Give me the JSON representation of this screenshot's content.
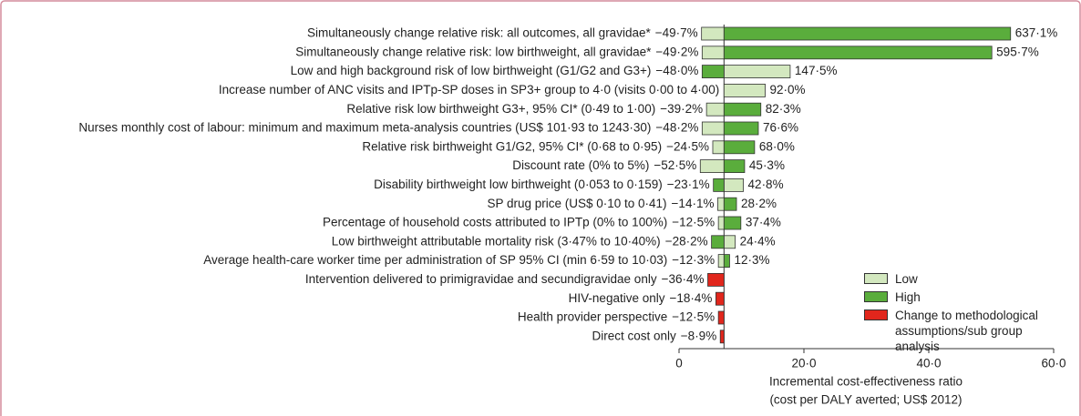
{
  "chart_data": {
    "type": "tornado",
    "categories": [
      "Simultaneously change relative risk: all outcomes, all gravidae*",
      "Simultaneously change relative risk: low birthweight, all gravidae*",
      "Low and high background risk of low birthweight (G1/G2 and G3+)",
      "Increase number of ANC visits and IPTp-SP doses in SP3+ group to 4·0 (visits 0·00 to 4·00)",
      "Relative risk low birthweight G3+, 95% CI* (0·49 to 1·00)",
      "Nurses monthly cost of labour: minimum and maximum meta-analysis countries (US$ 101·93 to 1243·30)",
      "Relative risk birthweight G1/G2, 95% CI* (0·68 to 0·95)",
      "Discount rate (0% to 5%)",
      "Disability birthweight low birthweight (0·053 to 0·159)",
      "SP drug price (US$ 0·10 to 0·41)",
      "Percentage of household costs attributed to IPTp (0% to 100%)",
      "Low birthweight attributable mortality risk (3·47% to 10·40%)",
      "Average health-care worker time per administration of SP 95% CI (min 6·59 to 10·03)",
      "Intervention delivered to primigravidae and secundigravidae only",
      "HIV-negative only",
      "Health provider perspective",
      "Direct cost only"
    ],
    "baseline": 7.2,
    "series": [
      {
        "name": "Low",
        "color": "#d3e8bf",
        "values": [
          3.6,
          3.7,
          17.8,
          13.8,
          4.4,
          3.7,
          5.4,
          3.4,
          10.3,
          6.2,
          6.3,
          9.0,
          6.3,
          null,
          null,
          null,
          null
        ],
        "labels": [
          "−49·7%",
          "−49·2%",
          "147·5%",
          "92·0%",
          "−39·2%",
          "−48·2%",
          "−24·5%",
          "−52·5%",
          "42·8%",
          "−14·1%",
          "−12·5%",
          "24·4%",
          "−12·3%",
          null,
          null,
          null,
          null
        ]
      },
      {
        "name": "High",
        "color": "#5aad3c",
        "values": [
          53.1,
          50.1,
          3.7,
          null,
          13.1,
          12.7,
          12.1,
          10.5,
          5.5,
          9.2,
          9.9,
          5.2,
          8.1,
          null,
          null,
          null,
          null
        ],
        "labels": [
          "637·1%",
          "595·7%",
          "−48·0%",
          null,
          "82·3%",
          "76·6%",
          "68·0%",
          "45·3%",
          "−23·1%",
          "28·2%",
          "37·4%",
          "−28·2%",
          "12·3%",
          null,
          null,
          null,
          null
        ]
      },
      {
        "name": "Change to methodological assumptions/sub group analysis",
        "color": "#e1261c",
        "values": [
          null,
          null,
          null,
          null,
          null,
          null,
          null,
          null,
          null,
          null,
          null,
          null,
          null,
          4.6,
          5.9,
          6.3,
          6.6
        ],
        "labels": [
          null,
          null,
          null,
          null,
          null,
          null,
          null,
          null,
          null,
          null,
          null,
          null,
          null,
          "−36·4%",
          "−18·4%",
          "−12·5%",
          "−8·9%"
        ]
      }
    ],
    "xlim": [
      0,
      60
    ],
    "xticks": [
      0,
      {
        "value": 20,
        "label": "20·0"
      },
      {
        "value": 40,
        "label": "40·0"
      },
      {
        "value": 60,
        "label": "60·0"
      }
    ],
    "xlabel": [
      "Incremental cost-effectiveness ratio",
      "(cost per DALY averted; US$ 2012)"
    ]
  }
}
